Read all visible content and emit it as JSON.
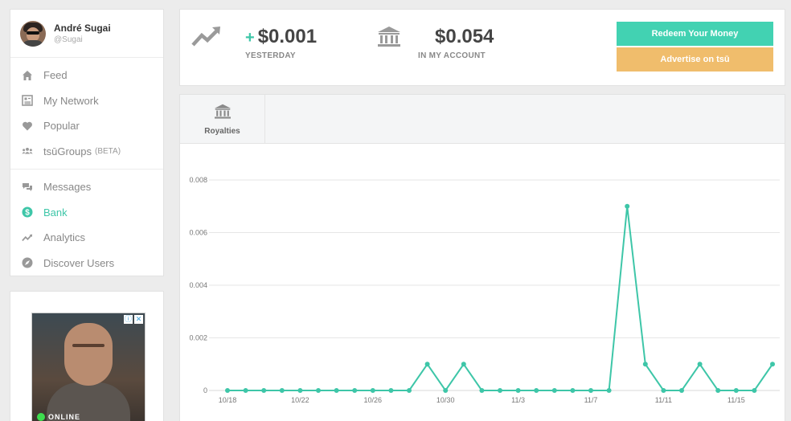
{
  "user": {
    "name": "André Sugai",
    "handle": "@Sugai"
  },
  "sidebar": {
    "groups": [
      [
        {
          "label": "Feed",
          "icon": "home-icon"
        },
        {
          "label": "My Network",
          "icon": "network-icon"
        },
        {
          "label": "Popular",
          "icon": "heart-icon"
        },
        {
          "label": "tsūGroups",
          "badge": "(BETA)",
          "icon": "groups-icon"
        }
      ],
      [
        {
          "label": "Messages",
          "icon": "messages-icon"
        },
        {
          "label": "Bank",
          "icon": "dollar-icon",
          "active": true
        },
        {
          "label": "Analytics",
          "icon": "trend-icon"
        },
        {
          "label": "Discover Users",
          "icon": "compass-icon"
        }
      ]
    ]
  },
  "ad": {
    "status": "ONLINE"
  },
  "stats": {
    "yesterday": {
      "prefix": "+",
      "value": "$0.001",
      "label": "YESTERDAY"
    },
    "account": {
      "value": "$0.054",
      "label": "IN MY ACCOUNT"
    }
  },
  "buttons": {
    "redeem": "Redeem Your Money",
    "advertise": "Advertise on tsū"
  },
  "tabs": [
    {
      "label": "Royalties",
      "icon": "bank-icon"
    }
  ],
  "colors": {
    "accent": "#3ec6a8",
    "redeem": "#42d2b2",
    "advertise": "#f0bd6c"
  },
  "chart_data": {
    "type": "line",
    "x": [
      "10/18",
      "10/19",
      "10/20",
      "10/21",
      "10/22",
      "10/23",
      "10/24",
      "10/25",
      "10/26",
      "10/27",
      "10/28",
      "10/29",
      "10/30",
      "10/31",
      "11/1",
      "11/2",
      "11/3",
      "11/4",
      "11/5",
      "11/6",
      "11/7",
      "11/8",
      "11/9",
      "11/10",
      "11/11",
      "11/12",
      "11/13",
      "11/14",
      "11/15",
      "11/16",
      "11/17"
    ],
    "values": [
      0,
      0,
      0,
      0,
      0,
      0,
      0,
      0,
      0,
      0,
      0,
      0.001,
      0,
      0.001,
      0,
      0,
      0,
      0,
      0,
      0,
      0,
      0,
      0.007,
      0.001,
      0,
      0,
      0.001,
      0,
      0,
      0,
      0.001
    ],
    "x_tick_labels": [
      "10/18",
      "10/22",
      "10/26",
      "10/30",
      "11/3",
      "11/7",
      "11/11",
      "11/15"
    ],
    "y_ticks": [
      "0",
      "0.002",
      "0.004",
      "0.006",
      "0.008"
    ],
    "ylim": [
      0,
      0.008
    ],
    "grid": true,
    "color": "#3ec6a8"
  }
}
